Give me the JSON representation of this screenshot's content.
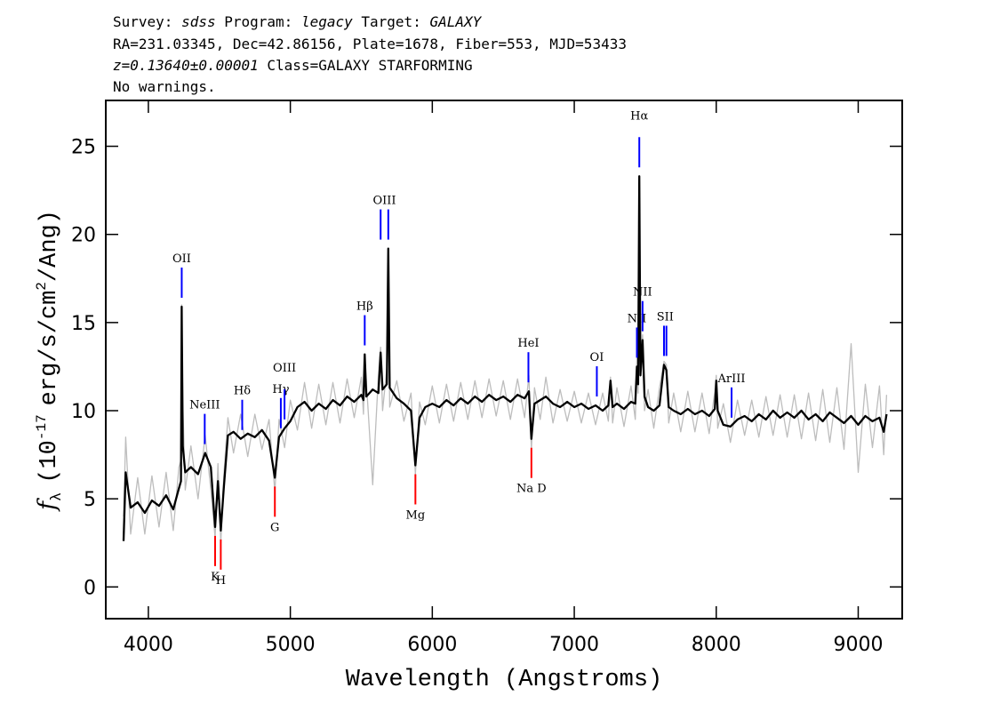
{
  "chart_data": {
    "type": "line",
    "header": [
      [
        "Survey:",
        "sdss",
        "Program:",
        "legacy",
        "Target:",
        "GALAXY"
      ],
      [
        "RA=231.03345, Dec=42.86156, Plate=1678, Fiber=553, MJD=53433"
      ],
      [
        "z=0.13640±0.00001",
        "Class=GALAXY STARFORMING"
      ],
      [
        "No warnings."
      ]
    ],
    "xlabel": "Wavelength (Angstroms)",
    "ylabel": [
      "f",
      "λ",
      "(10",
      "-17",
      "erg/s/cm",
      "2",
      "/Ang)"
    ],
    "xlim": [
      3700,
      9310
    ],
    "xticks": [
      4000,
      5000,
      6000,
      7000,
      8000,
      9000
    ],
    "ylim": [
      -1.8,
      27.6
    ],
    "yticks": [
      0,
      5,
      10,
      15,
      20,
      25
    ],
    "x": [
      3825,
      3840,
      3875,
      3925,
      3975,
      4025,
      4075,
      4125,
      4175,
      4215,
      4230,
      4235,
      4242,
      4260,
      4300,
      4350,
      4400,
      4440,
      4470,
      4490,
      4510,
      4530,
      4560,
      4600,
      4650,
      4700,
      4750,
      4800,
      4850,
      4891,
      4920,
      4960,
      5000,
      5050,
      5100,
      5150,
      5200,
      5250,
      5300,
      5350,
      5400,
      5450,
      5500,
      5515,
      5524,
      5535,
      5580,
      5620,
      5636,
      5650,
      5680,
      5690,
      5700,
      5750,
      5800,
      5850,
      5881,
      5910,
      5950,
      6000,
      6050,
      6100,
      6150,
      6200,
      6250,
      6300,
      6350,
      6400,
      6450,
      6500,
      6550,
      6600,
      6650,
      6680,
      6698,
      6720,
      6760,
      6800,
      6850,
      6900,
      6950,
      7000,
      7050,
      7100,
      7150,
      7200,
      7240,
      7255,
      7270,
      7300,
      7350,
      7400,
      7430,
      7441,
      7450,
      7458,
      7466,
      7481,
      7495,
      7520,
      7560,
      7600,
      7632,
      7649,
      7665,
      7700,
      7750,
      7800,
      7850,
      7900,
      7950,
      7990,
      8000,
      8010,
      8050,
      8100,
      8150,
      8200,
      8250,
      8300,
      8350,
      8400,
      8450,
      8500,
      8550,
      8600,
      8650,
      8700,
      8750,
      8800,
      8850,
      8900,
      8950,
      9000,
      9050,
      9100,
      9150,
      9180,
      9200
    ],
    "series": [
      {
        "color": "#bdbdbd",
        "values": [
          4.0,
          8.5,
          3.0,
          6.2,
          3.0,
          6.3,
          3.4,
          6.5,
          3.2,
          6.8,
          7.2,
          16.0,
          10.5,
          5.5,
          8.0,
          5.0,
          8.6,
          5.5,
          2.8,
          7.0,
          2.5,
          6.2,
          9.6,
          7.6,
          9.8,
          7.4,
          9.8,
          7.8,
          9.5,
          5.4,
          9.5,
          7.9,
          10.6,
          8.9,
          11.6,
          9.0,
          11.5,
          9.2,
          11.6,
          9.3,
          11.8,
          9.6,
          11.9,
          9.8,
          13.0,
          11.7,
          5.8,
          12.0,
          13.6,
          10.0,
          12.4,
          19.0,
          10.2,
          11.7,
          9.4,
          11.0,
          6.4,
          10.5,
          9.2,
          11.4,
          9.3,
          11.5,
          9.4,
          11.6,
          9.5,
          11.7,
          9.6,
          11.8,
          9.7,
          11.7,
          9.5,
          11.8,
          9.6,
          12.0,
          7.8,
          11.3,
          9.5,
          11.9,
          9.3,
          11.2,
          9.4,
          11.1,
          9.3,
          11.0,
          9.2,
          11.0,
          9.4,
          11.9,
          9.3,
          11.3,
          9.1,
          11.4,
          9.5,
          13.0,
          11.0,
          23.2,
          12.8,
          14.3,
          10.0,
          11.2,
          9.0,
          11.3,
          12.8,
          12.6,
          9.3,
          11.0,
          8.8,
          11.1,
          8.8,
          11.0,
          8.7,
          11.1,
          12.0,
          9.0,
          10.4,
          8.2,
          10.6,
          8.6,
          10.6,
          8.5,
          10.8,
          8.6,
          10.9,
          8.5,
          10.9,
          8.4,
          11.0,
          8.3,
          11.2,
          8.2,
          11.3,
          7.8,
          13.8,
          6.5,
          11.5,
          7.9,
          11.4,
          7.5,
          10.9
        ]
      },
      {
        "color": "#000000",
        "values": [
          2.6,
          6.5,
          4.5,
          4.8,
          4.2,
          4.9,
          4.6,
          5.2,
          4.4,
          5.6,
          6.0,
          15.9,
          8.0,
          6.5,
          6.8,
          6.4,
          7.6,
          6.8,
          3.4,
          6.0,
          3.2,
          5.5,
          8.6,
          8.8,
          8.4,
          8.7,
          8.5,
          8.9,
          8.3,
          6.2,
          8.5,
          9.0,
          9.4,
          10.2,
          10.5,
          10.0,
          10.4,
          10.1,
          10.6,
          10.3,
          10.8,
          10.5,
          10.9,
          10.6,
          13.2,
          10.8,
          11.2,
          11.0,
          13.3,
          11.2,
          11.5,
          19.2,
          11.3,
          10.7,
          10.4,
          10.0,
          6.9,
          9.6,
          10.2,
          10.4,
          10.2,
          10.6,
          10.3,
          10.7,
          10.4,
          10.8,
          10.5,
          10.9,
          10.6,
          10.8,
          10.5,
          10.9,
          10.7,
          11.1,
          8.4,
          10.4,
          10.6,
          10.8,
          10.4,
          10.2,
          10.5,
          10.2,
          10.4,
          10.1,
          10.3,
          10.0,
          10.3,
          11.7,
          10.2,
          10.4,
          10.1,
          10.5,
          10.4,
          12.5,
          11.5,
          23.3,
          12.0,
          14.0,
          10.8,
          10.2,
          10.0,
          10.3,
          12.6,
          12.3,
          10.2,
          10.0,
          9.8,
          10.1,
          9.8,
          10.0,
          9.7,
          10.1,
          11.7,
          10.0,
          9.2,
          9.1,
          9.5,
          9.7,
          9.4,
          9.8,
          9.5,
          10.0,
          9.6,
          9.9,
          9.6,
          10.0,
          9.5,
          9.8,
          9.4,
          9.9,
          9.6,
          9.3,
          9.7,
          9.2,
          9.7,
          9.4,
          9.6,
          8.8,
          9.8
        ]
      }
    ],
    "lines": [
      {
        "label": "OII",
        "wavelengths": [
          4235
        ],
        "kind": "emission",
        "color": "#0000ff"
      },
      {
        "label": "NeIII",
        "wavelengths": [
          4397
        ],
        "kind": "emission",
        "color": "#0000ff"
      },
      {
        "label": "Hδ",
        "wavelengths": [
          4661
        ],
        "kind": "emission",
        "color": "#0000ff"
      },
      {
        "label": "Hγ",
        "wavelengths": [
          4933
        ],
        "kind": "emission",
        "color": "#0000ff"
      },
      {
        "label": "OIII",
        "wavelengths": [
          4959
        ],
        "kind": "emission",
        "color": "#0000ff"
      },
      {
        "label": "Hβ",
        "wavelengths": [
          5524
        ],
        "kind": "emission",
        "color": "#0000ff"
      },
      {
        "label": "OIII",
        "wavelengths": [
          5636,
          5690
        ],
        "kind": "emission",
        "color": "#0000ff"
      },
      {
        "label": "HeI",
        "wavelengths": [
          6677
        ],
        "kind": "emission",
        "color": "#0000ff"
      },
      {
        "label": "OI",
        "wavelengths": [
          7159
        ],
        "kind": "emission",
        "color": "#0000ff"
      },
      {
        "label": "NII",
        "wavelengths": [
          7441
        ],
        "kind": "emission",
        "color": "#0000ff"
      },
      {
        "label": "Hα",
        "wavelengths": [
          7458
        ],
        "kind": "emission",
        "color": "#0000ff"
      },
      {
        "label": "NII",
        "wavelengths": [
          7481
        ],
        "kind": "emission",
        "color": "#0000ff"
      },
      {
        "label": "SII",
        "wavelengths": [
          7632,
          7649
        ],
        "kind": "emission",
        "color": "#0000ff"
      },
      {
        "label": "ArIII",
        "wavelengths": [
          8108
        ],
        "kind": "emission",
        "color": "#0000ff"
      },
      {
        "label": "K",
        "wavelengths": [
          4470
        ],
        "kind": "absorption",
        "color": "#ff0000"
      },
      {
        "label": "H",
        "wavelengths": [
          4510
        ],
        "kind": "absorption",
        "color": "#ff0000"
      },
      {
        "label": "G",
        "wavelengths": [
          4891
        ],
        "kind": "absorption",
        "color": "#ff0000"
      },
      {
        "label": "Mg",
        "wavelengths": [
          5881
        ],
        "kind": "absorption",
        "color": "#ff0000"
      },
      {
        "label": "Na D",
        "wavelengths": [
          6698
        ],
        "kind": "absorption",
        "color": "#ff0000"
      }
    ]
  }
}
